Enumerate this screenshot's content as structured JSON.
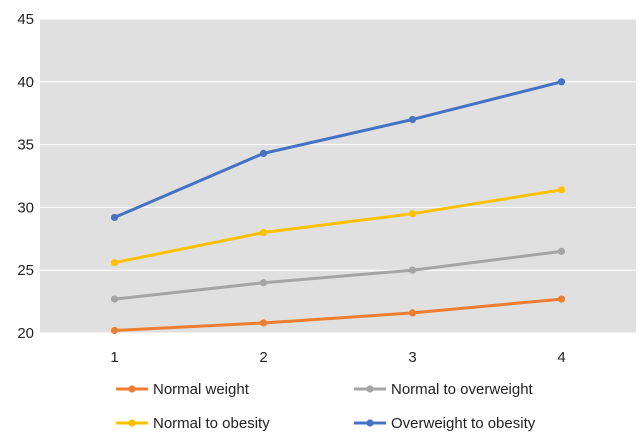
{
  "chart_data": {
    "type": "line",
    "title": "",
    "xlabel": "",
    "ylabel": "",
    "x": [
      1,
      2,
      3,
      4
    ],
    "ylim": [
      20,
      45
    ],
    "yticks": [
      20,
      25,
      30,
      35,
      40,
      45
    ],
    "grid": true,
    "plot_background": "#e0e0e0",
    "legend_placement": "bottom",
    "series": [
      {
        "name": "Normal weight",
        "color": "#ed7d31",
        "values": [
          20.2,
          20.8,
          21.6,
          22.7
        ]
      },
      {
        "name": "Normal to overweight",
        "color": "#a5a5a5",
        "values": [
          22.7,
          24.0,
          25.0,
          26.5
        ]
      },
      {
        "name": "Normal to obesity",
        "color": "#ffc000",
        "values": [
          25.6,
          28.0,
          29.5,
          31.4
        ]
      },
      {
        "name": "Overweight to obesity",
        "color": "#4472c4",
        "values": [
          29.2,
          34.3,
          37.0,
          40.0
        ]
      }
    ]
  }
}
